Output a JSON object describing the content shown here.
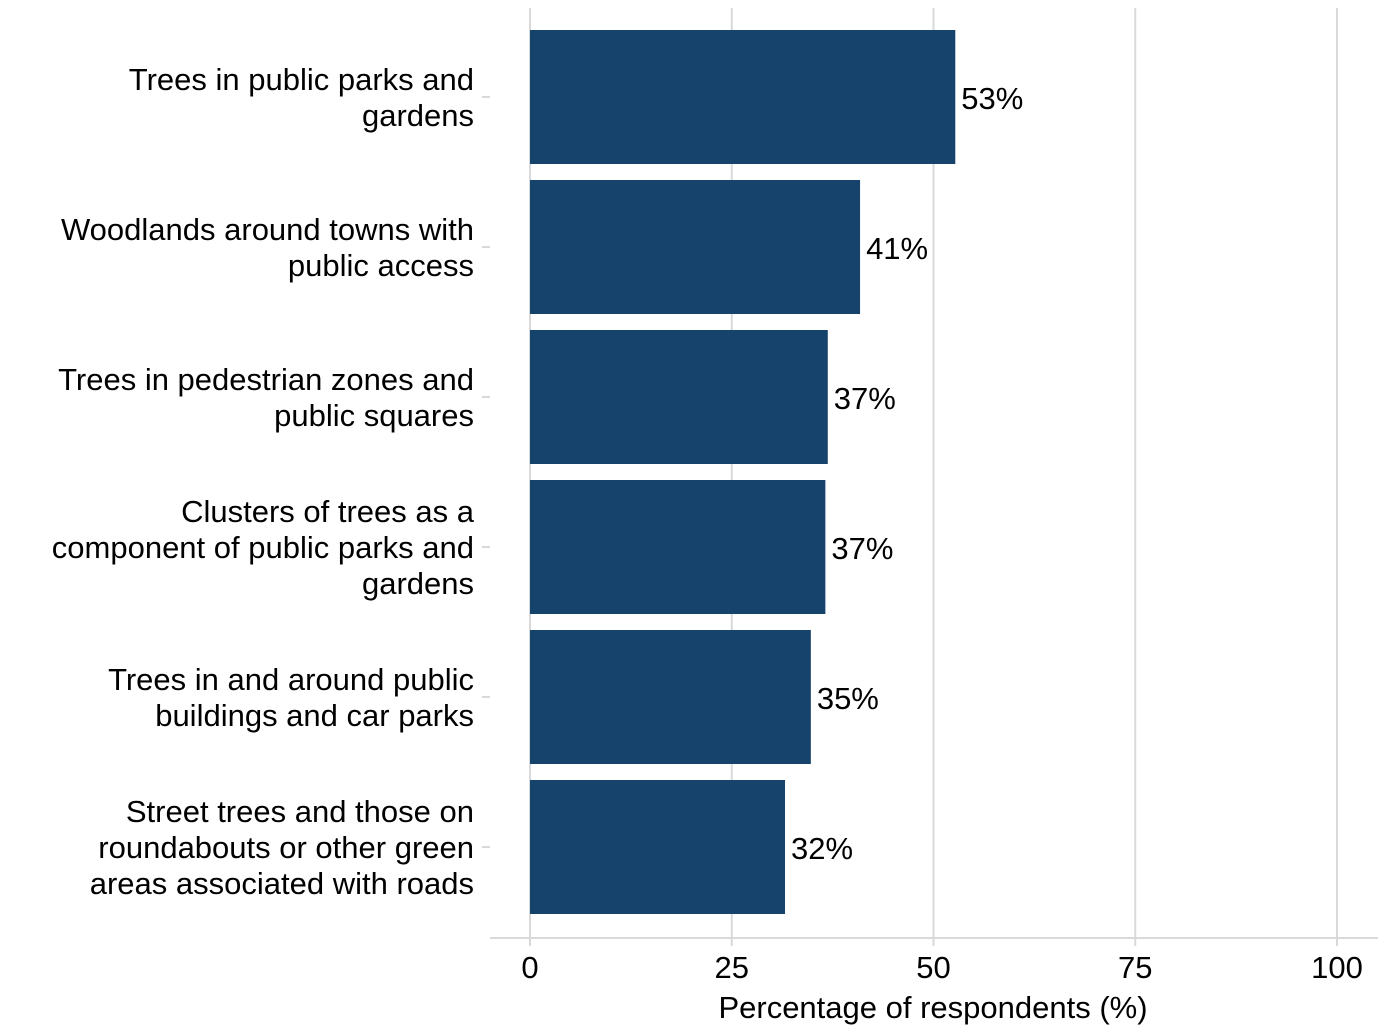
{
  "chart_data": {
    "type": "bar",
    "orientation": "horizontal",
    "categories": [
      [
        "Trees in public parks and",
        "gardens"
      ],
      [
        "Woodlands around towns with",
        "public access"
      ],
      [
        "Trees in pedestrian zones and",
        "public squares"
      ],
      [
        "Clusters of trees as a",
        "component of public parks and",
        "gardens"
      ],
      [
        "Trees in and around public",
        "buildings and car parks"
      ],
      [
        "Street trees and those on",
        "roundabouts or other green",
        "areas associated with roads"
      ]
    ],
    "values": [
      52.7,
      40.9,
      36.9,
      36.6,
      34.8,
      31.6
    ],
    "data_labels": [
      "53%",
      "41%",
      "37%",
      "37%",
      "35%",
      "32%"
    ],
    "title": "",
    "xlabel": "Percentage of respondents (%)",
    "ylabel": "",
    "xlim": [
      0,
      100
    ],
    "xticks": [
      0,
      25,
      50,
      75,
      100
    ],
    "xtick_labels": [
      "0",
      "25",
      "50",
      "75",
      "100"
    ],
    "grid": "vertical",
    "bar_color": "#15436b",
    "grid_color": "#d9d9d9",
    "axis_color": "#d9d9d9"
  }
}
